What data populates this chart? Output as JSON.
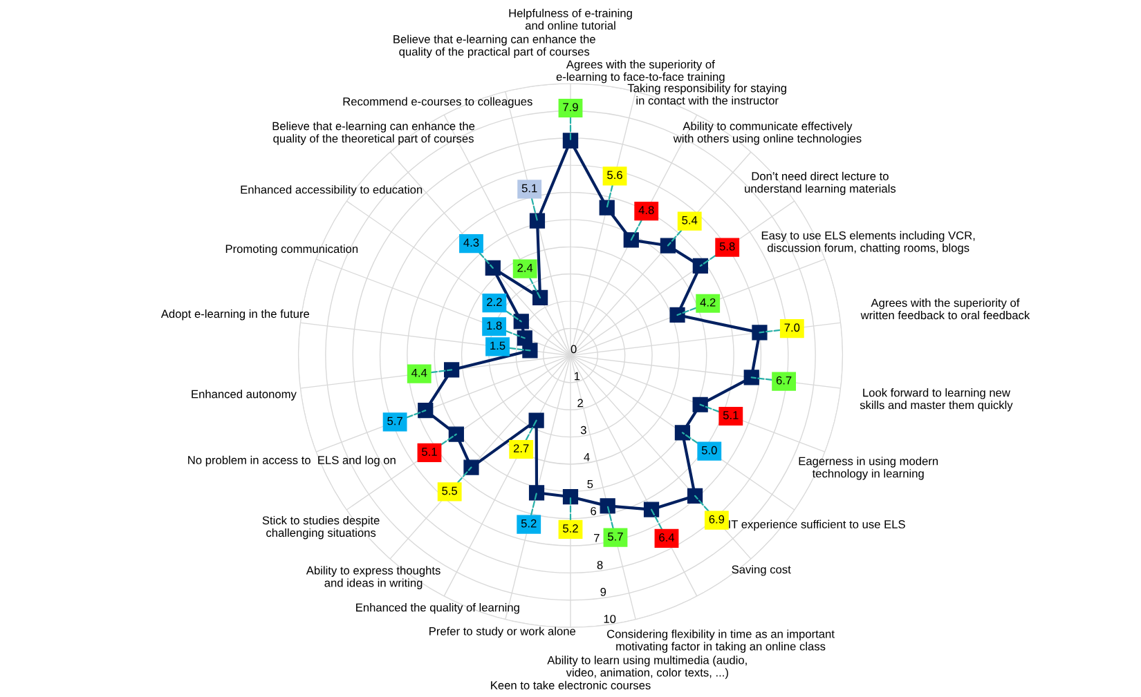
{
  "chart_data": {
    "type": "radar",
    "categories": [
      "Helpfulness of e-training and online tutorial",
      "Agrees with the superiority of e-learning to face-to-face training",
      "Taking responsibility for staying in contact with the instructor",
      "Ability to communicate effectively with others using online technologies",
      "Don’t need direct lecture to understand learning materials",
      "Easy to use ELS elements including VCR, discussion forum, chatting rooms, blogs",
      "Agrees with the superiority of written feedback to oral feedback",
      "Look forward to learning new skills and master them quickly",
      "Eagerness in using modern technology in learning",
      "IT experience sufficient to use ELS",
      "Saving cost",
      "Considering flexibility in time as an important motivating factor in taking an online class",
      "Ability to learn using multimedia (audio, video, animation, color texts, ...)",
      "Keen to take electronic courses",
      "Prefer to study or work alone",
      "Enhanced the quality of learning",
      "Ability to express thoughts and ideas in writing",
      "Stick to studies despite challenging situations",
      "No problem in access to  ELS and log on",
      "Enhanced autonomy",
      "Adopt e-learning in the future",
      "Promoting communication",
      "Enhanced accessibility to education",
      "Believe that e-learning can enhance the quality of the theoretical part of courses",
      "Recommend e-courses to colleagues",
      "Believe that e-learning can enhance the quality of the practical part of courses"
    ],
    "series": [
      {
        "color": "#002060",
        "values": [
          7.9,
          5.6,
          4.8,
          5.4,
          5.8,
          4.2,
          7.0,
          6.7,
          5.1,
          5.0,
          6.9,
          6.4,
          5.7,
          5.2,
          5.2,
          2.7,
          5.5,
          5.1,
          5.7,
          4.4,
          1.5,
          1.8,
          2.2,
          4.3,
          2.4,
          5.1
        ],
        "value_labels": [
          "7.9",
          "5.6",
          "4.8",
          "5.4",
          "5.8",
          "4.2",
          "7.0",
          "6.7",
          "5.1",
          "5.0",
          "6.9",
          "6.4",
          "5.7",
          "5.2",
          "5.2",
          "2.7",
          "5.5",
          "5.1",
          "5.7",
          "4.4",
          "1.5",
          "1.8",
          "2.2",
          "4.3",
          "2.4",
          "5.1"
        ],
        "colors": [
          "#66ff33",
          "#ffff00",
          "#ff0000",
          "#ffff00",
          "#ff0000",
          "#66ff33",
          "#ffff00",
          "#66ff33",
          "#ff0000",
          "#00b0f0",
          "#ffff00",
          "#ff0000",
          "#66ff33",
          "#ffff00",
          "#00b0f0",
          "#ffff00",
          "#ffff00",
          "#ff0000",
          "#00b0f0",
          "#66ff33",
          "#00b0f0",
          "#00b0f0",
          "#00b0f0",
          "#00b0f0",
          "#66ff33",
          "#b4c7e7"
        ]
      }
    ],
    "ylim": [
      0,
      10
    ],
    "yticks": [
      0,
      1,
      2,
      3,
      4,
      5,
      6,
      7,
      8,
      9,
      10
    ],
    "grid": true,
    "marker": "square",
    "line_style": "solid"
  }
}
